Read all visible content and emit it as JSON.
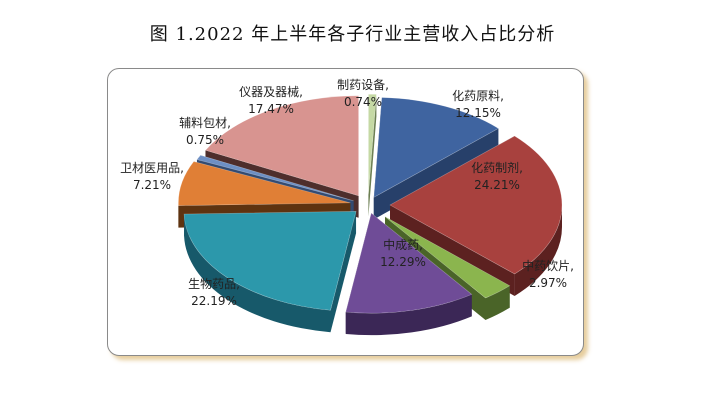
{
  "chart_data": {
    "type": "pie",
    "title": "图 1.2022 年上半年各子行业主营收入占比分析",
    "slices": [
      {
        "name": "化药原料",
        "value": 12.15,
        "value_label": "12.15%",
        "color": "#3f64a0",
        "side_color": "#27406a"
      },
      {
        "name": "化药制剂",
        "value": 24.21,
        "value_label": "24.21%",
        "color": "#a8413e",
        "side_color": "#5c2120"
      },
      {
        "name": "中药饮片",
        "value": 2.97,
        "value_label": "2.97%",
        "color": "#8bb54e",
        "side_color": "#4a6428"
      },
      {
        "name": "中成药",
        "value": 12.29,
        "value_label": "12.29%",
        "color": "#6f4c97",
        "side_color": "#3b2756"
      },
      {
        "name": "生物药品",
        "value": 22.19,
        "value_label": "22.19%",
        "color": "#2c98ab",
        "side_color": "#17596a"
      },
      {
        "name": "卫材医用品",
        "value": 7.21,
        "value_label": "7.21%",
        "color": "#e07f36",
        "side_color": "#5e3310"
      },
      {
        "name": "辅料包材",
        "value": 0.75,
        "value_label": "0.75%",
        "color": "#6d8fc4",
        "side_color": "#334b72"
      },
      {
        "name": "仪器及器械",
        "value": 17.47,
        "value_label": "17.47%",
        "color": "#d89490",
        "side_color": "#4e2e2c"
      },
      {
        "name": "制药设备",
        "value": 0.74,
        "value_label": "0.74%",
        "color": "#c5d9a4",
        "side_color": "#6c7f52"
      }
    ],
    "legend": "none",
    "data_labels": "name, percent"
  }
}
